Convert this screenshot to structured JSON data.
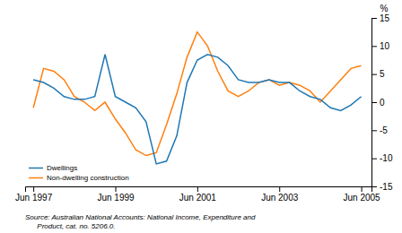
{
  "chart_data": {
    "type": "line",
    "ylabel": "%",
    "annotations": [
      "Source: Australian National Accounts: National Income, Expenditure and",
      "      Product, cat. no. 5206.0."
    ],
    "x": [
      1997.5,
      1997.75,
      1998.0,
      1998.25,
      1998.5,
      1998.75,
      1999.0,
      1999.25,
      1999.5,
      1999.75,
      2000.0,
      2000.25,
      2000.5,
      2000.75,
      2001.0,
      2001.25,
      2001.5,
      2001.75,
      2002.0,
      2002.25,
      2002.5,
      2002.75,
      2003.0,
      2003.25,
      2003.5,
      2003.75,
      2004.0,
      2004.25,
      2004.5,
      2004.75,
      2005.0,
      2005.25,
      2005.5
    ],
    "series": [
      {
        "name": "Dwellings",
        "values": [
          4.0,
          3.5,
          2.5,
          1.0,
          0.5,
          0.5,
          1.0,
          8.5,
          1.0,
          0.0,
          -1.0,
          -3.5,
          -11.0,
          -10.5,
          -6.0,
          3.5,
          7.5,
          8.5,
          8.0,
          6.5,
          4.0,
          3.5,
          3.5,
          4.0,
          3.5,
          3.5,
          2.0,
          1.0,
          0.5,
          -1.0,
          -1.5,
          -0.5,
          1.0
        ]
      },
      {
        "name": "Non-dwelling construction",
        "values": [
          -1.0,
          6.0,
          5.5,
          4.0,
          1.0,
          0.0,
          -1.5,
          0.0,
          -3.0,
          -5.5,
          -8.5,
          -9.5,
          -9.0,
          -4.0,
          1.5,
          8.0,
          12.5,
          10.0,
          5.5,
          2.0,
          1.0,
          2.0,
          3.5,
          4.0,
          3.0,
          3.5,
          3.0,
          2.0,
          0.0,
          2.0,
          4.0,
          6.0,
          6.5
        ]
      }
    ],
    "xlim": [
      1997.3,
      2005.75
    ],
    "xticks": [
      {
        "value": 1997.5,
        "label": "Jun 1997"
      },
      {
        "value": 1999.5,
        "label": "Jun 1999"
      },
      {
        "value": 2001.5,
        "label": "Jun 2001"
      },
      {
        "value": 2003.5,
        "label": "Jun 2003"
      },
      {
        "value": 2005.5,
        "label": "Jun 2005"
      }
    ],
    "ylim": [
      -15,
      15
    ],
    "yticks": [
      -15,
      -10,
      -5,
      0,
      5,
      10,
      15
    ],
    "legend": "lower left"
  }
}
